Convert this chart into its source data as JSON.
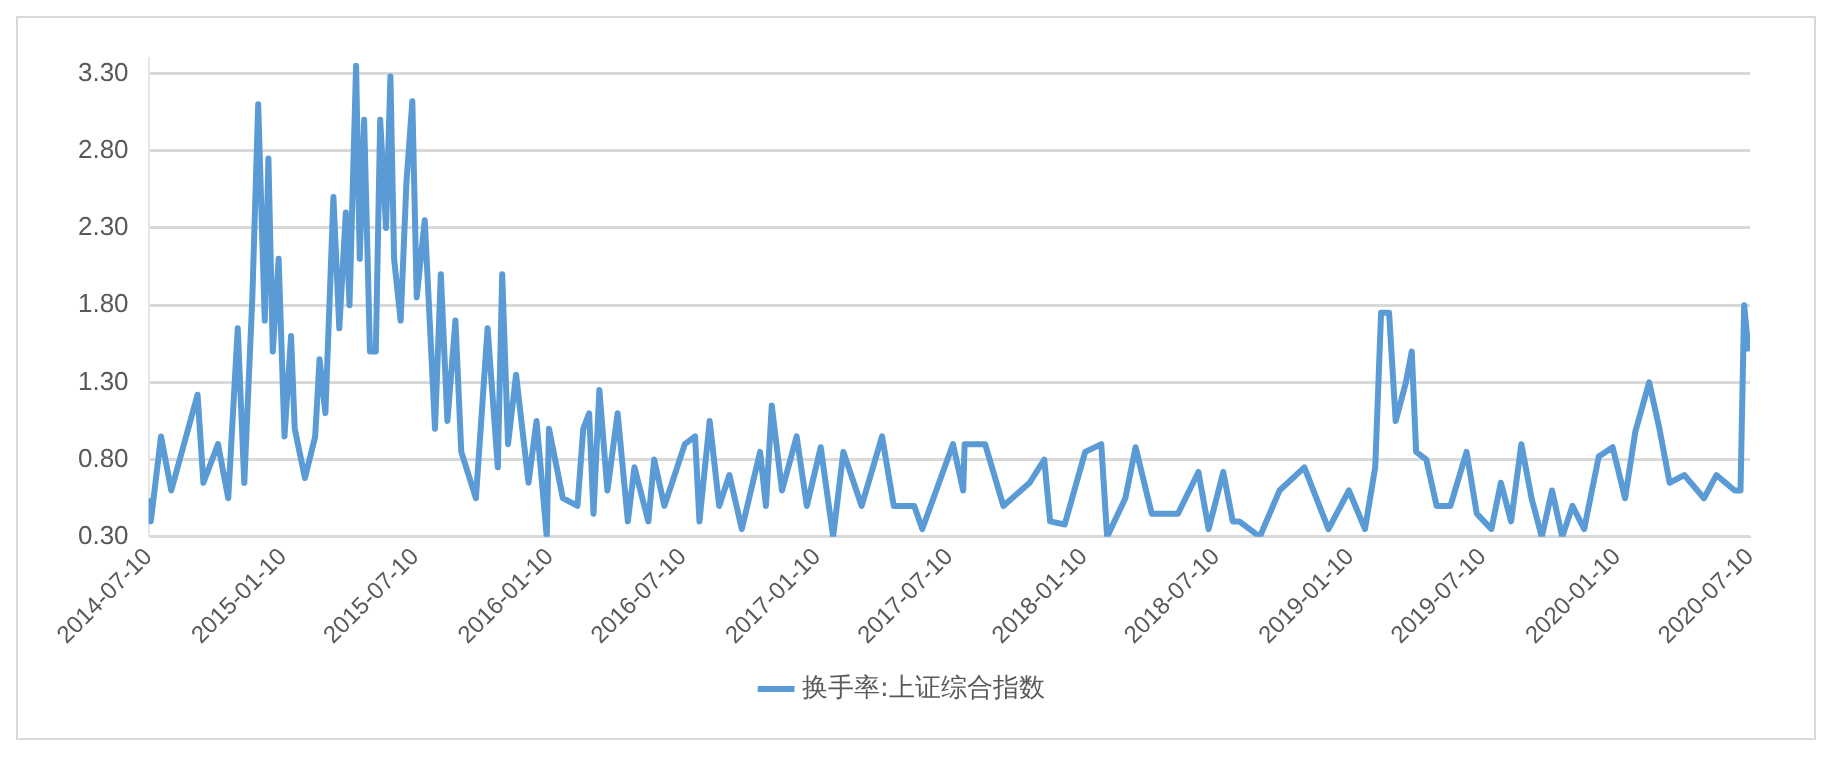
{
  "chart_data": {
    "type": "line",
    "legend": "bottom",
    "grid": "y",
    "marker": "none",
    "line_style": "solid",
    "xlim": [
      "2014-07-10",
      "2020-07-10"
    ],
    "xticks": [
      "2014-07-10",
      "2015-01-10",
      "2015-07-10",
      "2016-01-10",
      "2016-07-10",
      "2017-01-10",
      "2017-07-10",
      "2018-01-10",
      "2018-07-10",
      "2019-01-10",
      "2019-07-10",
      "2020-01-10",
      "2020-07-10"
    ],
    "ylim": [
      0.3,
      3.4
    ],
    "yticks": [
      {
        "value": 0.3,
        "label": "0.30"
      },
      {
        "value": 0.8,
        "label": "0.80"
      },
      {
        "value": 1.3,
        "label": "1.30"
      },
      {
        "value": 1.8,
        "label": "1.80"
      },
      {
        "value": 2.3,
        "label": "2.30"
      },
      {
        "value": 2.8,
        "label": "2.80"
      },
      {
        "value": 3.3,
        "label": "3.30"
      }
    ],
    "x": [
      "2014-07-10",
      "2014-07-13",
      "2014-07-27",
      "2014-08-10",
      "2014-09-15",
      "2014-09-23",
      "2014-10-13",
      "2014-10-27",
      "2014-11-09",
      "2014-11-18",
      "2014-11-29",
      "2014-12-07",
      "2014-12-16",
      "2014-12-21",
      "2014-12-27",
      "2015-01-04",
      "2015-01-12",
      "2015-01-21",
      "2015-01-26",
      "2015-02-09",
      "2015-02-23",
      "2015-03-01",
      "2015-03-09",
      "2015-03-20",
      "2015-03-28",
      "2015-04-06",
      "2015-04-11",
      "2015-04-20",
      "2015-04-25",
      "2015-05-01",
      "2015-05-09",
      "2015-05-17",
      "2015-05-23",
      "2015-05-31",
      "2015-06-06",
      "2015-06-11",
      "2015-06-20",
      "2015-06-28",
      "2015-07-06",
      "2015-07-12",
      "2015-07-23",
      "2015-08-06",
      "2015-08-14",
      "2015-08-23",
      "2015-09-03",
      "2015-09-11",
      "2015-10-01",
      "2015-10-17",
      "2015-10-31",
      "2015-11-06",
      "2015-11-14",
      "2015-11-25",
      "2015-12-12",
      "2015-12-23",
      "2016-01-06",
      "2016-01-09",
      "2016-01-28",
      "2016-02-17",
      "2016-02-25",
      "2016-03-04",
      "2016-03-10",
      "2016-03-18",
      "2016-03-29",
      "2016-04-12",
      "2016-04-26",
      "2016-05-05",
      "2016-05-24",
      "2016-06-01",
      "2016-06-15",
      "2016-07-13",
      "2016-07-27",
      "2016-08-02",
      "2016-08-16",
      "2016-08-29",
      "2016-09-12",
      "2016-09-29",
      "2016-10-24",
      "2016-11-01",
      "2016-11-09",
      "2016-11-23",
      "2016-12-13",
      "2016-12-27",
      "2017-01-15",
      "2017-02-01",
      "2017-02-15",
      "2017-03-12",
      "2017-04-09",
      "2017-04-25",
      "2017-05-23",
      "2017-06-03",
      "2017-07-15",
      "2017-07-29",
      "2017-07-31",
      "2017-08-28",
      "2017-09-22",
      "2017-10-28",
      "2017-11-17",
      "2017-11-25",
      "2017-12-15",
      "2018-01-12",
      "2018-02-03",
      "2018-02-11",
      "2018-03-08",
      "2018-03-22",
      "2018-04-13",
      "2018-05-19",
      "2018-06-16",
      "2018-06-30",
      "2018-07-20",
      "2018-08-02",
      "2018-08-11",
      "2018-09-08",
      "2018-10-05",
      "2018-11-08",
      "2018-12-11",
      "2019-01-08",
      "2019-01-30",
      "2019-02-13",
      "2019-02-21",
      "2019-03-04",
      "2019-03-13",
      "2019-03-27",
      "2019-04-04",
      "2019-04-10",
      "2019-04-24",
      "2019-05-08",
      "2019-05-27",
      "2019-06-18",
      "2019-07-02",
      "2019-07-22",
      "2019-08-04",
      "2019-08-18",
      "2019-09-01",
      "2019-09-15",
      "2019-09-29",
      "2019-10-13",
      "2019-10-27",
      "2019-11-10",
      "2019-11-26",
      "2019-12-16",
      "2020-01-04",
      "2020-01-21",
      "2020-02-04",
      "2020-02-23",
      "2020-03-08",
      "2020-03-22",
      "2020-04-11",
      "2020-05-08",
      "2020-05-25",
      "2020-06-19",
      "2020-06-27",
      "2020-07-02",
      "2020-07-08"
    ],
    "series": [
      {
        "name": "换手率:上证综合指数",
        "color": "#5b9bd5",
        "values": [
          0.55,
          0.4,
          0.95,
          0.6,
          1.22,
          0.65,
          0.9,
          0.55,
          1.65,
          0.65,
          1.85,
          3.1,
          1.7,
          2.75,
          1.5,
          2.1,
          0.95,
          1.6,
          1.0,
          0.68,
          0.95,
          1.45,
          1.1,
          2.5,
          1.65,
          2.4,
          1.8,
          3.35,
          2.1,
          3.0,
          1.5,
          1.5,
          3.0,
          2.3,
          3.28,
          2.1,
          1.7,
          2.6,
          3.12,
          1.85,
          2.35,
          1.0,
          2.0,
          1.05,
          1.7,
          0.85,
          0.55,
          1.65,
          0.75,
          2.0,
          0.9,
          1.35,
          0.65,
          1.05,
          0.3,
          1.0,
          0.55,
          0.5,
          1.0,
          1.1,
          0.45,
          1.25,
          0.6,
          1.1,
          0.4,
          0.75,
          0.4,
          0.8,
          0.5,
          0.9,
          0.95,
          0.4,
          1.05,
          0.5,
          0.7,
          0.35,
          0.85,
          0.5,
          1.15,
          0.6,
          0.95,
          0.5,
          0.88,
          0.3,
          0.85,
          0.5,
          0.95,
          0.5,
          0.5,
          0.35,
          0.9,
          0.6,
          0.9,
          0.9,
          0.5,
          0.65,
          0.8,
          0.4,
          0.38,
          0.85,
          0.9,
          0.3,
          0.55,
          0.88,
          0.45,
          0.45,
          0.72,
          0.35,
          0.72,
          0.4,
          0.4,
          0.3,
          0.6,
          0.75,
          0.35,
          0.6,
          0.35,
          0.75,
          1.75,
          1.75,
          1.05,
          1.3,
          1.5,
          0.85,
          0.8,
          0.5,
          0.5,
          0.85,
          0.45,
          0.35,
          0.65,
          0.4,
          0.9,
          0.55,
          0.3,
          0.6,
          0.3,
          0.5,
          0.35,
          0.82,
          0.88,
          0.55,
          0.98,
          1.3,
          1.0,
          0.65,
          0.7,
          0.55,
          0.7,
          0.6,
          0.6,
          1.8,
          1.5
        ]
      }
    ]
  }
}
